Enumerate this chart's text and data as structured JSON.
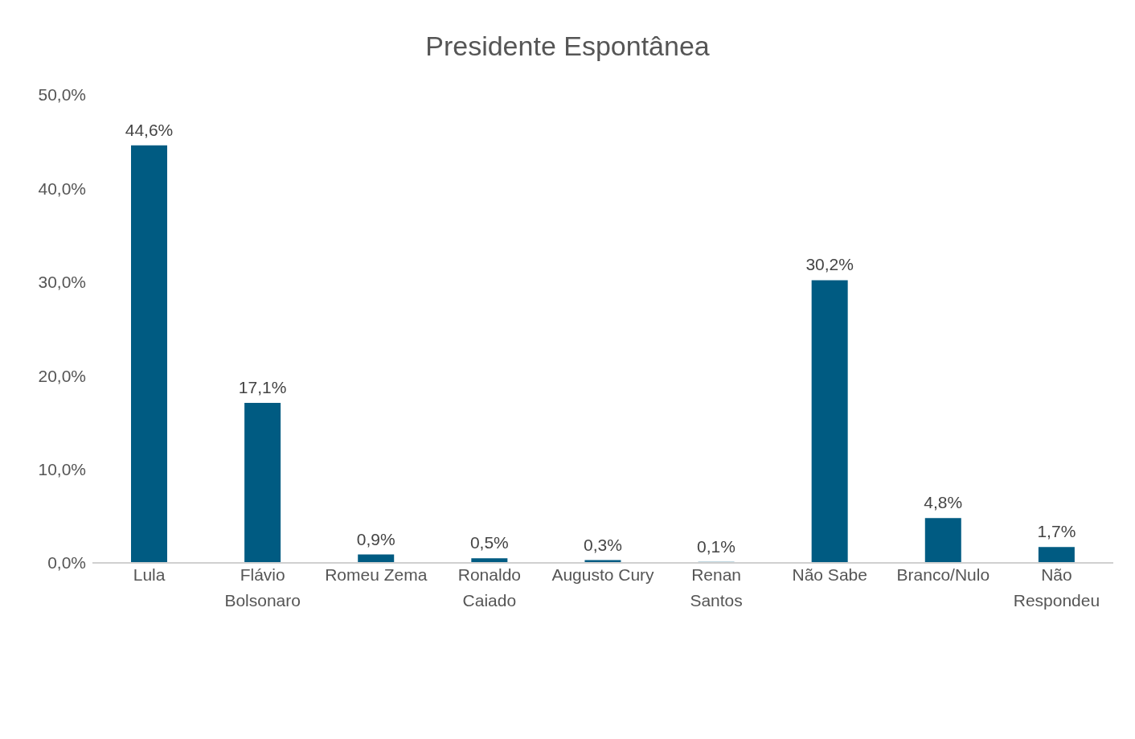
{
  "chart_data": {
    "type": "bar",
    "title": "Presidente Espontânea",
    "categories": [
      "Lula",
      "Flávio\nBolsonaro",
      "Romeu Zema",
      "Ronaldo\nCaiado",
      "Augusto Cury",
      "Renan\nSantos",
      "Não Sabe",
      "Branco/Nulo",
      "Não\nRespondeu"
    ],
    "values": [
      44.6,
      17.1,
      0.9,
      0.5,
      0.3,
      0.1,
      30.2,
      4.8,
      1.7
    ],
    "value_labels": [
      "44,6%",
      "17,1%",
      "0,9%",
      "0,5%",
      "0,3%",
      "0,1%",
      "30,2%",
      "4,8%",
      "1,7%"
    ],
    "color": "#005b82",
    "ylim": [
      0,
      50
    ],
    "yticks": [
      {
        "value": 0,
        "label": "0,0%"
      },
      {
        "value": 10,
        "label": "10,0%"
      },
      {
        "value": 20,
        "label": "20,0%"
      },
      {
        "value": 30,
        "label": "30,0%"
      },
      {
        "value": 40,
        "label": "40,0%"
      },
      {
        "value": 50,
        "label": "50,0%"
      }
    ],
    "grid": false,
    "legend": false
  }
}
